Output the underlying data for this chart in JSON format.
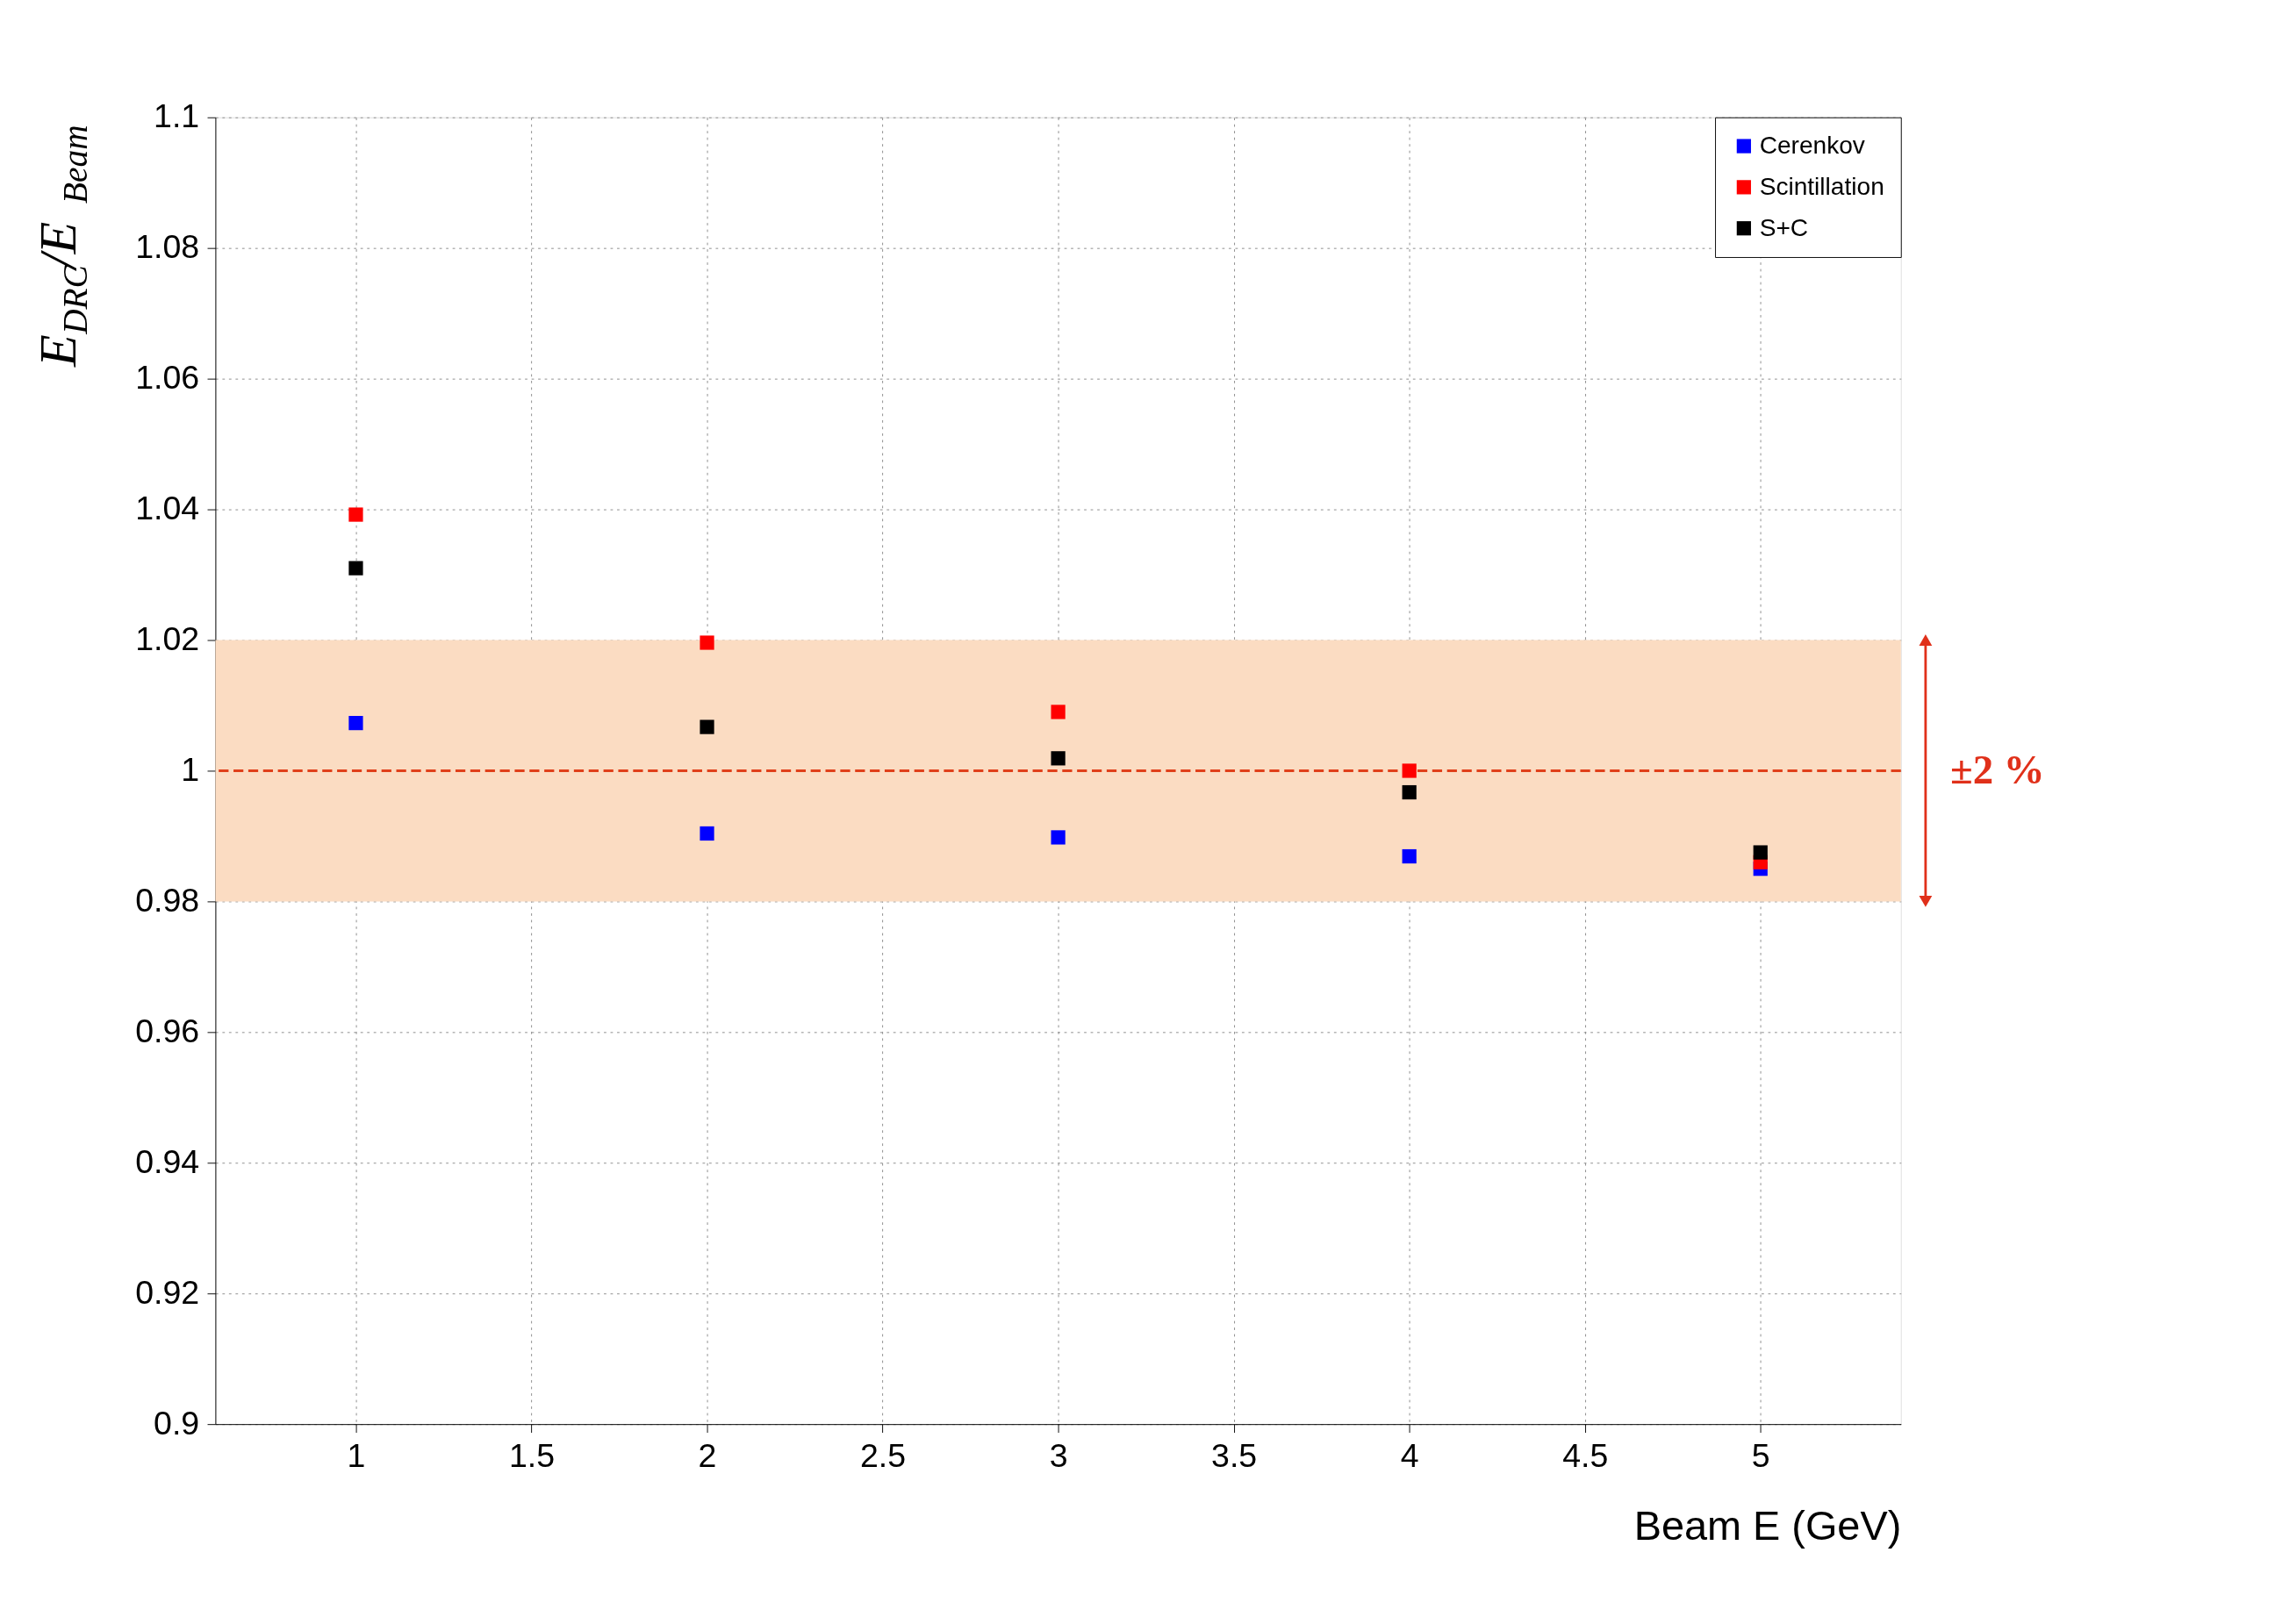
{
  "chart_data": {
    "type": "scatter",
    "xlabel": "Beam E (GeV)",
    "ylabel": "E$_{DRC}$/E$_{Beam}$",
    "x": [
      1,
      2,
      3,
      4,
      5
    ],
    "series": [
      {
        "name": "Cerenkov",
        "color": "#0000ff",
        "values": [
          1.0073,
          0.9904,
          0.9898,
          0.9869,
          0.985
        ]
      },
      {
        "name": "Scintillation",
        "color": "#ff0000",
        "values": [
          1.0392,
          1.0196,
          1.009,
          1.0,
          0.986
        ]
      },
      {
        "name": "S+C",
        "color": "#000000",
        "values": [
          1.031,
          1.0067,
          1.0019,
          0.9967,
          0.9875
        ]
      }
    ],
    "xlim": [
      0.6,
      5.4
    ],
    "xticks": [
      {
        "value": 1,
        "label": "1"
      },
      1.5,
      {
        "value": 2,
        "label": "2"
      },
      2.5,
      {
        "value": 3,
        "label": "3"
      },
      3.5,
      {
        "value": 4,
        "label": "4"
      },
      4.5,
      {
        "value": 5,
        "label": "5"
      }
    ],
    "ylim": [
      0.9,
      1.1
    ],
    "yticks": [
      0.9,
      0.92,
      0.94,
      0.96,
      0.98,
      1,
      1.02,
      1.04,
      1.06,
      1.08,
      1.1
    ],
    "ref_lines": [
      {
        "axis": "y",
        "value": 1,
        "color": "#e0401a",
        "line_style": "dashed"
      }
    ],
    "bands": [
      {
        "axis": "y",
        "from": 0.98,
        "to": 1.02,
        "label": "±2 %",
        "color": "#fbdcc2"
      }
    ],
    "grid": true,
    "legend": "top right",
    "marker": "square"
  }
}
